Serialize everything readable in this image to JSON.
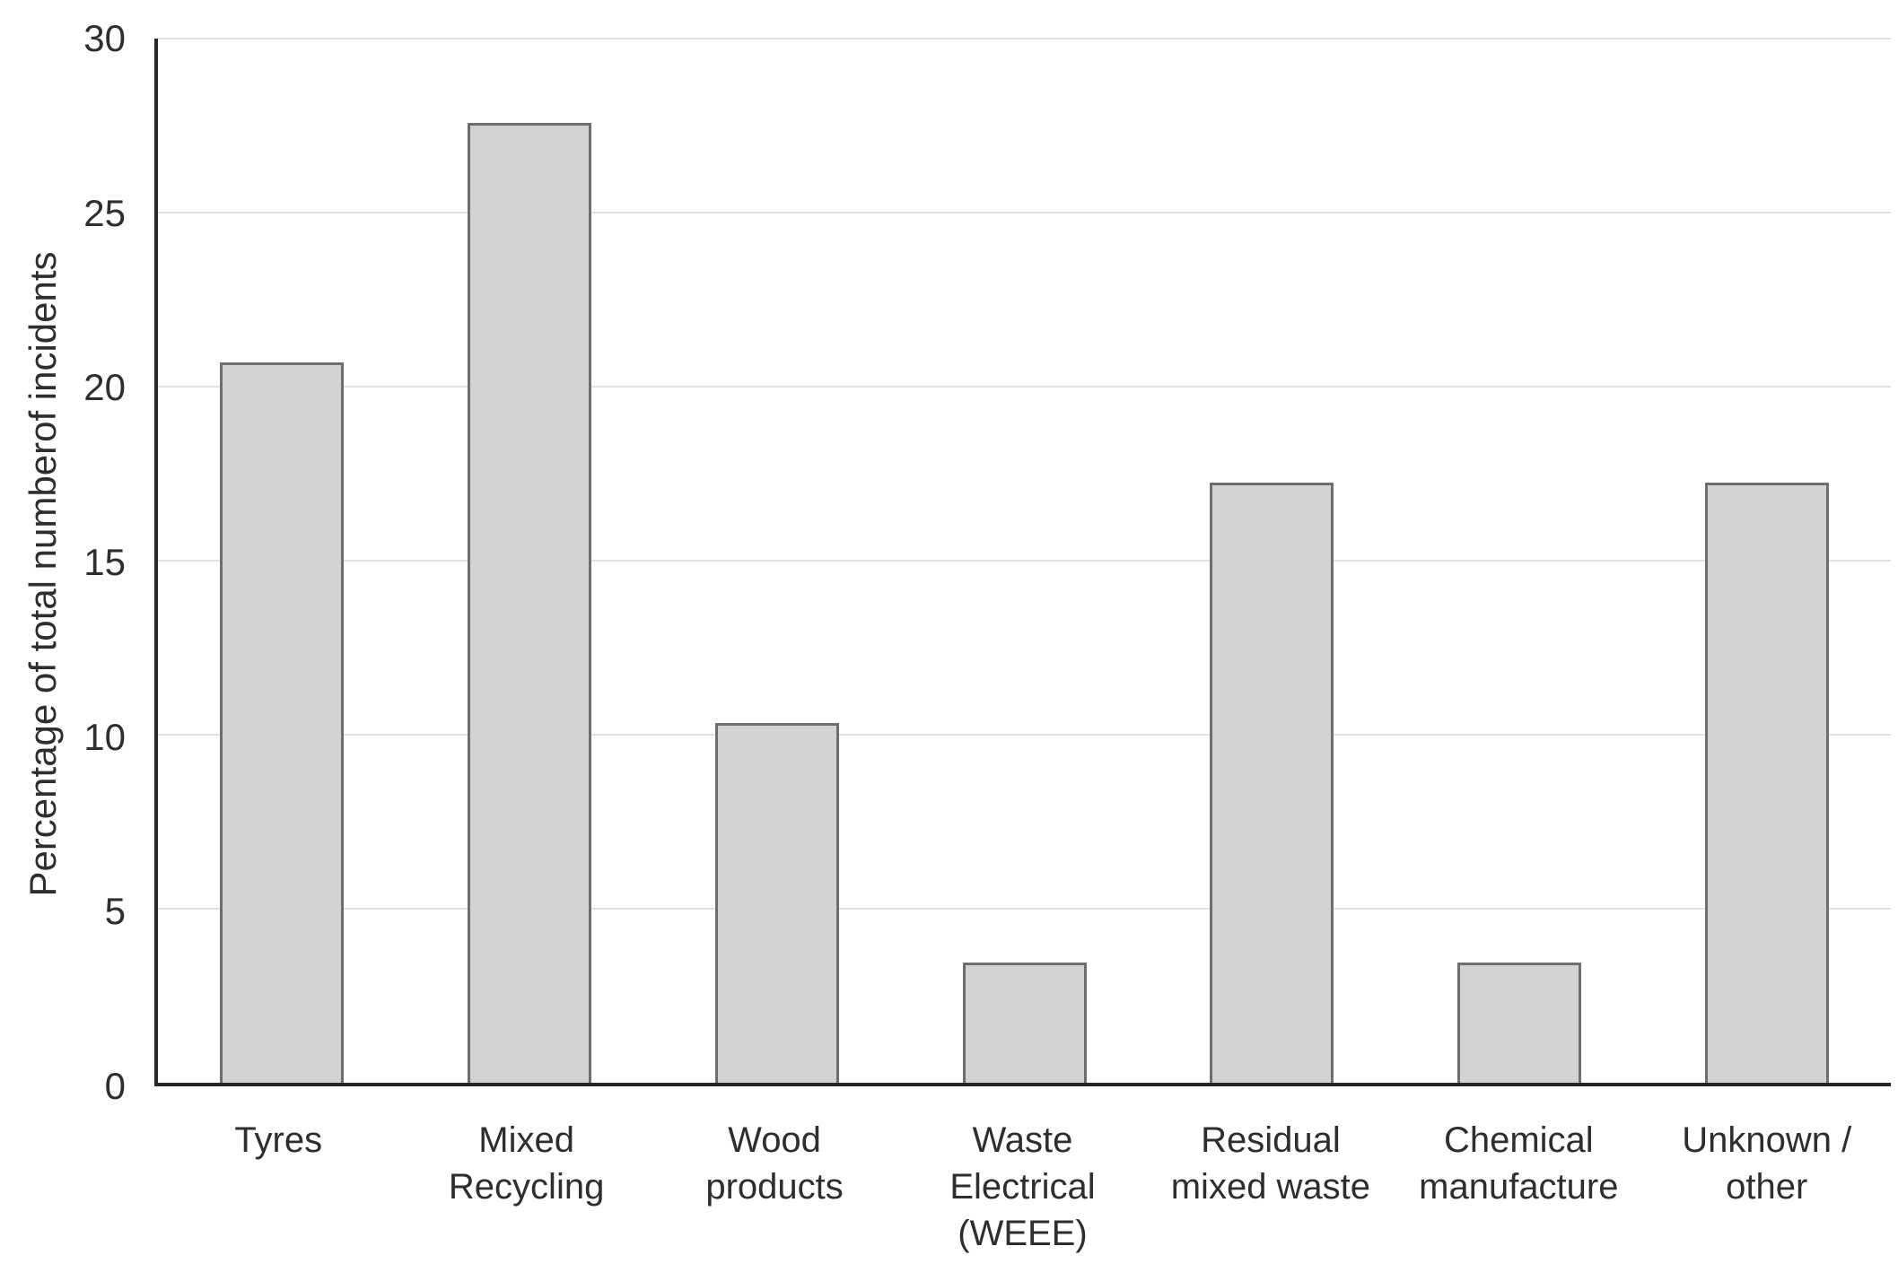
{
  "chart_data": {
    "type": "bar",
    "title": "",
    "xlabel": "",
    "ylabel": "Percentage of total numberof incidents",
    "categories": [
      "Tyres",
      "Mixed\nRecycling",
      "Wood\nproducts",
      "Waste\nElectrical\n(WEEE)",
      "Residual\nmixed waste",
      "Chemical\nmanufacture",
      "Unknown /\nother"
    ],
    "category_names": [
      "tyres",
      "mixed-recycling",
      "wood-products",
      "waste-electrical-weee",
      "residual-mixed-waste",
      "chemical-manufacture",
      "unknown-other"
    ],
    "values": [
      20.69,
      27.59,
      10.34,
      3.45,
      17.24,
      3.45,
      17.24
    ],
    "ylim": [
      0,
      30
    ],
    "yticks": [
      0,
      5,
      10,
      15,
      20,
      25,
      30
    ],
    "grid": "horizontal-light",
    "legend": "none",
    "colors": {
      "bar_fill": "#d2d2d2",
      "bar_border": "#6e6e6e",
      "gridline": "#dde3ea",
      "axis": "#262626",
      "text": "#2e2e2e",
      "background": "#ffffff"
    }
  }
}
